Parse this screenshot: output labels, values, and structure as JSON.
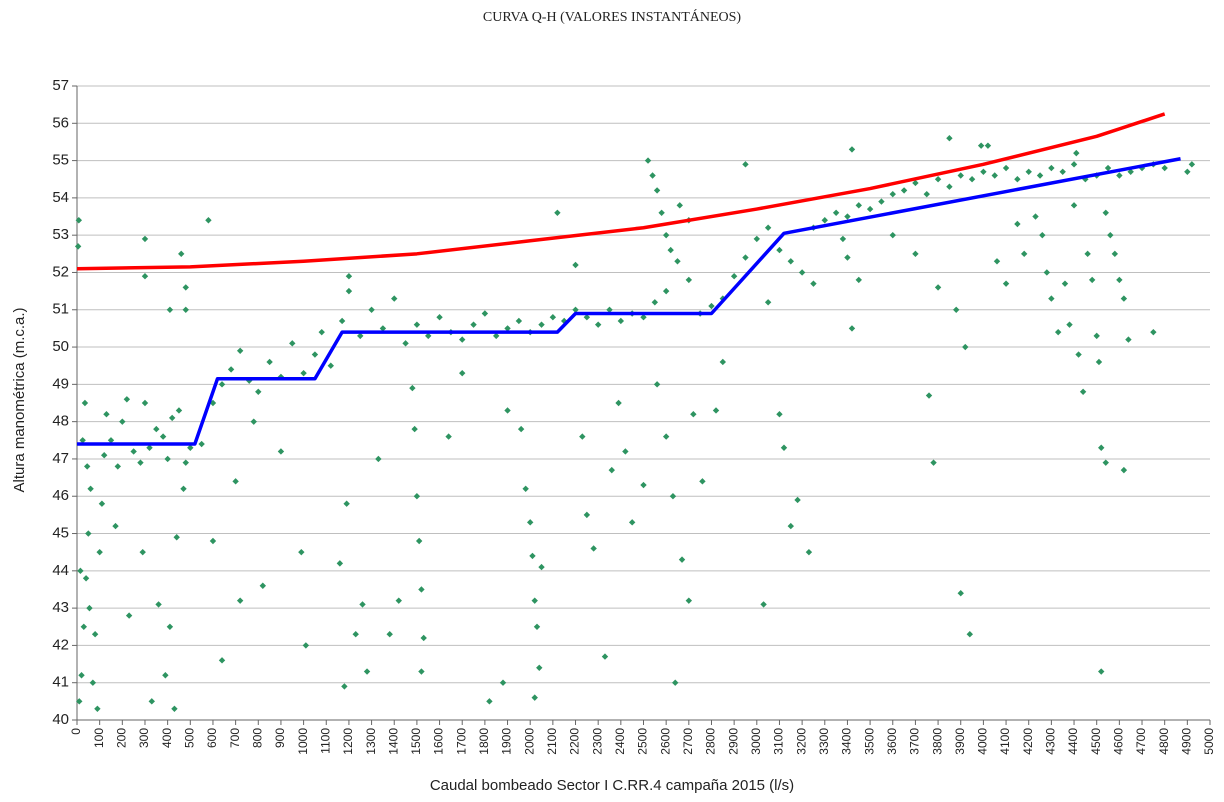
{
  "chart_data": {
    "type": "scatter",
    "title": "CURVA Q-H (VALORES INSTANTÁNEOS)",
    "x_label": "Caudal bombeado Sector I C.RR.4 campaña 2015 (l/s)",
    "y_label": "Altura manométrica (m.c.a.)",
    "xlim": [
      0,
      5000
    ],
    "ylim": [
      40,
      57
    ],
    "xticks": [
      0,
      100,
      200,
      300,
      400,
      500,
      600,
      700,
      800,
      900,
      1000,
      1100,
      1200,
      1300,
      1400,
      1500,
      1600,
      1700,
      1800,
      1900,
      2000,
      2100,
      2200,
      2300,
      2400,
      2500,
      2600,
      2700,
      2800,
      2900,
      3000,
      3100,
      3200,
      3300,
      3400,
      3500,
      3600,
      3700,
      3800,
      3900,
      4000,
      4100,
      4200,
      4300,
      4400,
      4500,
      4600,
      4700,
      4800,
      4900,
      5000
    ],
    "yticks": [
      40,
      41,
      42,
      43,
      44,
      45,
      46,
      47,
      48,
      49,
      50,
      51,
      52,
      53,
      54,
      55,
      56,
      57
    ],
    "grid": true,
    "series": [
      {
        "type": "scatter",
        "color": "#2e9461",
        "x": [
          10,
          20,
          30,
          40,
          50,
          15,
          60,
          25,
          35,
          5,
          8,
          70,
          80,
          90,
          45,
          55,
          100,
          110,
          120,
          130,
          150,
          200,
          250,
          300,
          350,
          400,
          450,
          500,
          180,
          280,
          380,
          480,
          220,
          320,
          420,
          170,
          230,
          290,
          330,
          360,
          390,
          410,
          430,
          440,
          470,
          300,
          460,
          480,
          410,
          300,
          480,
          550,
          600,
          640,
          680,
          720,
          760,
          800,
          850,
          900,
          950,
          1000,
          1050,
          1080,
          700,
          720,
          820,
          640,
          600,
          580,
          990,
          1010,
          900,
          780,
          1120,
          1170,
          1200,
          1250,
          1300,
          1350,
          1400,
          1450,
          1500,
          1550,
          1600,
          1650,
          1700,
          1750,
          1800,
          1850,
          1900,
          1950,
          2000,
          2050,
          2100,
          1190,
          1160,
          1180,
          1230,
          1260,
          1280,
          1330,
          1380,
          1420,
          1490,
          1500,
          1510,
          1520,
          1530,
          1520,
          1480,
          1820,
          1880,
          1960,
          1980,
          2000,
          2010,
          2020,
          2030,
          2040,
          2020,
          2050,
          1900,
          1640,
          1700,
          1200,
          2120,
          2150,
          2200,
          2250,
          2300,
          2350,
          2400,
          2450,
          2500,
          2550,
          2600,
          2650,
          2700,
          2750,
          2800,
          2520,
          2540,
          2560,
          2580,
          2600,
          2620,
          2660,
          2700,
          2230,
          2250,
          2280,
          2330,
          2360,
          2390,
          2420,
          2450,
          2500,
          2560,
          2600,
          2630,
          2640,
          2670,
          2700,
          2720,
          2760,
          2820,
          2850,
          2200,
          2850,
          2900,
          2950,
          3000,
          3050,
          3100,
          3150,
          3200,
          2950,
          3050,
          3100,
          3120,
          3150,
          3230,
          3030,
          3180,
          3250,
          3250,
          3300,
          3350,
          3400,
          3450,
          3500,
          3550,
          3600,
          3650,
          3700,
          3750,
          3800,
          3850,
          3900,
          3950,
          4000,
          4050,
          4100,
          4150,
          4200,
          4250,
          4300,
          4350,
          4400,
          4450,
          4500,
          4550,
          4600,
          4650,
          4700,
          4750,
          4800,
          4900,
          4920,
          3400,
          3450,
          3420,
          3380,
          3600,
          3700,
          3780,
          3760,
          3800,
          3850,
          3880,
          3900,
          3940,
          3920,
          3990,
          4020,
          4060,
          4100,
          4150,
          4180,
          4230,
          4260,
          4280,
          4300,
          4330,
          4360,
          4380,
          4400,
          4420,
          4440,
          4460,
          4480,
          4500,
          4510,
          4520,
          4540,
          4560,
          4580,
          4600,
          4620,
          4640,
          4410,
          3420,
          4520,
          4540,
          4620,
          4750
        ],
        "values": [
          40.5,
          41.2,
          42.5,
          43.8,
          45,
          44,
          46.2,
          47.5,
          48.5,
          52.7,
          53.4,
          41,
          42.3,
          40.3,
          46.8,
          43,
          44.5,
          45.8,
          47.1,
          48.2,
          47.5,
          48,
          47.2,
          48.5,
          47.8,
          47.0,
          48.3,
          47.3,
          46.8,
          46.9,
          47.6,
          46.9,
          48.6,
          47.3,
          48.1,
          45.2,
          42.8,
          44.5,
          40.5,
          43.1,
          41.2,
          42.5,
          40.3,
          44.9,
          46.2,
          52.9,
          52.5,
          51.0,
          51.0,
          51.9,
          51.6,
          47.4,
          48.5,
          49.0,
          49.4,
          49.9,
          49.1,
          48.8,
          49.6,
          49.2,
          50.1,
          49.3,
          49.8,
          50.4,
          46.4,
          43.2,
          43.6,
          41.6,
          44.8,
          53.4,
          44.5,
          42,
          47.2,
          48.0,
          49.5,
          50.7,
          51.5,
          50.3,
          51.0,
          50.5,
          51.3,
          50.1,
          50.6,
          50.3,
          50.8,
          50.4,
          50.2,
          50.6,
          50.9,
          50.3,
          50.5,
          50.7,
          50.4,
          50.6,
          50.8,
          45.8,
          44.2,
          40.9,
          42.3,
          43.1,
          41.3,
          47.0,
          42.3,
          43.2,
          47.8,
          46,
          44.8,
          43.5,
          42.2,
          41.3,
          48.9,
          40.5,
          41,
          47.8,
          46.2,
          45.3,
          44.4,
          43.2,
          42.5,
          41.4,
          40.6,
          44.1,
          48.3,
          47.6,
          49.3,
          51.9,
          53.6,
          50.7,
          51.0,
          50.8,
          50.6,
          51.0,
          50.7,
          50.9,
          50.8,
          51.2,
          51.5,
          52.3,
          51.8,
          50.9,
          51.1,
          55.0,
          54.6,
          54.2,
          53.6,
          53.0,
          52.6,
          53.8,
          53.4,
          47.6,
          45.5,
          44.6,
          41.7,
          46.7,
          48.5,
          47.2,
          45.3,
          46.3,
          49.0,
          47.6,
          46,
          41.0,
          44.3,
          43.2,
          48.2,
          46.4,
          48.3,
          49.6,
          52.2,
          51.3,
          51.9,
          52.4,
          52.9,
          53.2,
          52.6,
          52.3,
          52.0,
          54.9,
          51.2,
          48.2,
          47.3,
          45.2,
          44.5,
          43.1,
          45.9,
          51.7,
          53.2,
          53.4,
          53.6,
          53.5,
          53.8,
          53.7,
          53.9,
          54.1,
          54.2,
          54.4,
          54.1,
          54.5,
          54.3,
          54.6,
          54.5,
          54.7,
          54.6,
          54.8,
          54.5,
          54.7,
          54.6,
          54.8,
          54.7,
          54.9,
          54.5,
          54.6,
          54.8,
          54.6,
          54.7,
          54.8,
          54.9,
          54.8,
          54.7,
          54.9,
          52.4,
          51.8,
          50.5,
          52.9,
          53.0,
          52.5,
          46.9,
          48.7,
          51.6,
          55.6,
          51,
          43.4,
          42.3,
          50,
          55.4,
          55.4,
          52.3,
          51.7,
          53.3,
          52.5,
          53.5,
          53,
          52,
          51.3,
          50.4,
          51.7,
          50.6,
          53.8,
          49.8,
          48.8,
          52.5,
          51.8,
          50.3,
          49.6,
          41.3,
          53.6,
          53,
          52.5,
          51.8,
          51.3,
          50.2,
          55.2,
          55.3,
          47.3,
          46.9,
          46.7,
          50.4
        ]
      },
      {
        "type": "line",
        "color": "#ff0000",
        "x": [
          0,
          500,
          1000,
          1500,
          2000,
          2500,
          3000,
          3500,
          4000,
          4500,
          4800
        ],
        "values": [
          52.1,
          52.15,
          52.3,
          52.5,
          52.85,
          53.2,
          53.7,
          54.25,
          54.9,
          55.65,
          56.25
        ]
      },
      {
        "type": "line",
        "color": "#0000ff",
        "x": [
          0,
          520,
          620,
          1050,
          1170,
          2120,
          2200,
          2800,
          3120,
          4870
        ],
        "values": [
          47.4,
          47.4,
          49.15,
          49.15,
          50.4,
          50.4,
          50.9,
          50.9,
          53.05,
          55.05
        ]
      }
    ]
  }
}
